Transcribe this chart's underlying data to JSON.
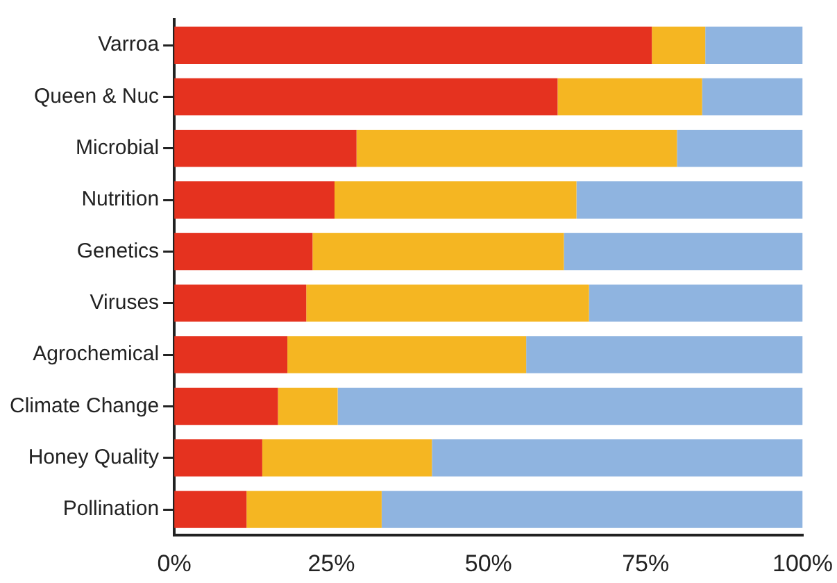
{
  "chart_data": {
    "type": "bar",
    "orientation": "horizontal",
    "stacked": true,
    "categories": [
      "Varroa",
      "Queen & Nuc",
      "Microbial",
      "Nutrition",
      "Genetics",
      "Viruses",
      "Agrochemical",
      "Climate Change",
      "Honey Quality",
      "Pollination"
    ],
    "series": [
      {
        "color": "#e5321f",
        "values": [
          76,
          61,
          29,
          25.5,
          22,
          21,
          18,
          16.5,
          14,
          11.5
        ]
      },
      {
        "color": "#f5b622",
        "values": [
          8.5,
          23,
          51,
          38.5,
          40,
          45,
          38,
          9.5,
          27,
          21.5
        ]
      },
      {
        "color": "#8fb4e0",
        "values": [
          15.5,
          16,
          20,
          36,
          38,
          34,
          44,
          74,
          59,
          67
        ]
      }
    ],
    "xlim": [
      0,
      100
    ],
    "xticks": [
      {
        "value": 0,
        "label": "0%"
      },
      {
        "value": 25,
        "label": "25%"
      },
      {
        "value": 50,
        "label": "50%"
      },
      {
        "value": 75,
        "label": "75%"
      },
      {
        "value": 100,
        "label": "100%"
      }
    ],
    "grid": false,
    "legend": false
  }
}
